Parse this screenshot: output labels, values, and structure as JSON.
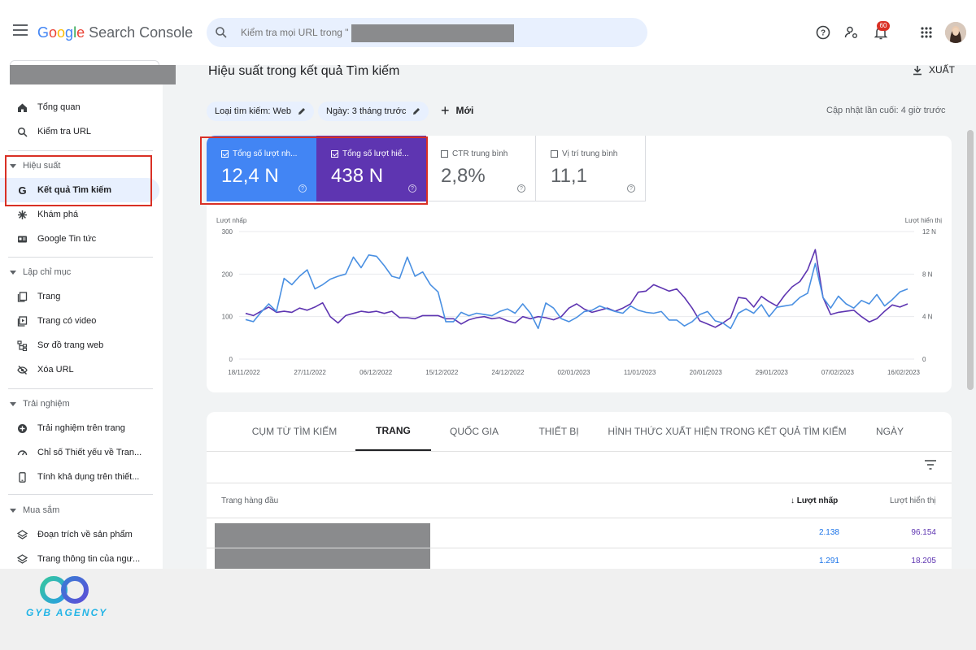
{
  "header": {
    "logo_google": [
      "G",
      "o",
      "o",
      "g",
      "l",
      "e"
    ],
    "logo_product": "Search Console",
    "search_placeholder": "Kiểm tra mọi URL trong \"",
    "notification_count": "60"
  },
  "sidebar": {
    "items": [
      {
        "label": "Tổng quan",
        "icon": "home-icon"
      },
      {
        "label": "Kiểm tra URL",
        "icon": "search-icon"
      }
    ],
    "sections": [
      {
        "label": "Hiệu suất",
        "items": [
          {
            "label": "Kết quả Tìm kiếm",
            "icon": "google-g-icon",
            "active": true
          },
          {
            "label": "Khám phá",
            "icon": "asterisk-icon"
          },
          {
            "label": "Google Tin tức",
            "icon": "news-icon"
          }
        ]
      },
      {
        "label": "Lập chỉ mục",
        "items": [
          {
            "label": "Trang",
            "icon": "pages-icon"
          },
          {
            "label": "Trang có video",
            "icon": "video-icon"
          },
          {
            "label": "Sơ đồ trang web",
            "icon": "sitemap-icon"
          },
          {
            "label": "Xóa URL",
            "icon": "eye-off-icon"
          }
        ]
      },
      {
        "label": "Trải nghiệm",
        "items": [
          {
            "label": "Trải nghiệm trên trang",
            "icon": "plus-circle-icon"
          },
          {
            "label": "Chỉ số Thiết yếu về Tran...",
            "icon": "gauge-icon"
          },
          {
            "label": "Tính khả dụng trên thiết...",
            "icon": "phone-icon"
          }
        ]
      },
      {
        "label": "Mua sắm",
        "items": [
          {
            "label": "Đoạn trích về sản phẩm",
            "icon": "layers-icon"
          },
          {
            "label": "Trang thông tin của ngư...",
            "icon": "layers-icon"
          }
        ]
      }
    ]
  },
  "main": {
    "title": "Hiệu suất trong kết quả Tìm kiếm",
    "export_label": "XUẤT",
    "filters": [
      "Loại tìm kiếm: Web",
      "Ngày: 3 tháng trước"
    ],
    "new_label": "Mới",
    "last_updated": "Cập nhật lần cuối: 4 giờ trước",
    "metrics": [
      {
        "label": "Tổng số lượt nh...",
        "value": "12,4 N",
        "checked": true
      },
      {
        "label": "Tổng số lượt hiể...",
        "value": "438 N",
        "checked": true
      },
      {
        "label": "CTR trung bình",
        "value": "2,8%",
        "checked": false
      },
      {
        "label": "Vị trí trung bình",
        "value": "11,1",
        "checked": false
      }
    ]
  },
  "chart_data": {
    "type": "line",
    "ylabel_left": "Lượt nhấp",
    "ylabel_right": "Lượt hiển thị",
    "left_ticks": [
      "300",
      "200",
      "100",
      "0"
    ],
    "right_ticks": [
      "12 N",
      "8 N",
      "4 N",
      "0"
    ],
    "ylim_left": [
      0,
      300
    ],
    "ylim_right": [
      0,
      12000
    ],
    "x_ticks": [
      "18/11/2022",
      "27/11/2022",
      "06/12/2022",
      "15/12/2022",
      "24/12/2022",
      "02/01/2023",
      "11/01/2023",
      "20/01/2023",
      "29/01/2023",
      "07/02/2023",
      "16/02/2023"
    ],
    "colors": {
      "clicks": "#4a90e2",
      "impressions": "#5e35b1"
    },
    "series": [
      {
        "name": "Lượt nhấp",
        "axis": "left",
        "values": [
          93,
          88,
          110,
          130,
          112,
          190,
          175,
          195,
          210,
          165,
          175,
          188,
          195,
          200,
          240,
          215,
          245,
          242,
          220,
          195,
          190,
          240,
          195,
          205,
          175,
          158,
          88,
          88,
          110,
          102,
          108,
          105,
          102,
          112,
          118,
          108,
          130,
          108,
          72,
          132,
          120,
          95,
          88,
          98,
          112,
          115,
          125,
          118,
          112,
          108,
          125,
          115,
          110,
          108,
          112,
          92,
          92,
          78,
          88,
          105,
          112,
          90,
          85,
          72,
          108,
          118,
          108,
          128,
          100,
          122,
          125,
          128,
          145,
          155,
          225,
          145,
          120,
          148,
          130,
          120,
          138,
          130,
          152,
          125,
          140,
          158,
          165
        ]
      },
      {
        "name": "Lượt hiển thị",
        "axis": "right",
        "values": [
          4300,
          4100,
          4500,
          4900,
          4400,
          4500,
          4400,
          4800,
          4600,
          4900,
          5300,
          4000,
          3400,
          4100,
          4300,
          4500,
          4400,
          4500,
          4300,
          4500,
          3900,
          3900,
          3800,
          4100,
          4100,
          4100,
          3800,
          3800,
          3300,
          3700,
          3900,
          4000,
          3800,
          3900,
          3600,
          3400,
          4000,
          3800,
          4000,
          3900,
          3700,
          4000,
          4800,
          5200,
          4700,
          4400,
          4600,
          4800,
          4500,
          4800,
          5200,
          6300,
          6400,
          7000,
          6700,
          6400,
          6600,
          5800,
          4800,
          3600,
          3300,
          3000,
          3400,
          3900,
          5800,
          5700,
          4900,
          5900,
          5400,
          5000,
          6000,
          6800,
          7300,
          8400,
          10300,
          5800,
          4200,
          4400,
          4500,
          4600,
          4000,
          3500,
          3800,
          4500,
          5100,
          4900,
          5200
        ]
      }
    ]
  },
  "table": {
    "tabs": [
      "CỤM TỪ TÌM KIẾM",
      "TRANG",
      "QUỐC GIA",
      "THIẾT BỊ",
      "HÌNH THỨC XUẤT HIỆN TRONG KẾT QUẢ TÌM KIẾM",
      "NGÀY"
    ],
    "active_tab": "TRANG",
    "columns": [
      "Trang hàng đầu",
      "Lượt nhấp",
      "Lượt hiển thị"
    ],
    "rows": [
      {
        "clicks": "2.138",
        "impressions": "96.154"
      },
      {
        "clicks": "1.291",
        "impressions": "18.205"
      }
    ]
  },
  "brand": {
    "name": "GYB AGENCY"
  }
}
